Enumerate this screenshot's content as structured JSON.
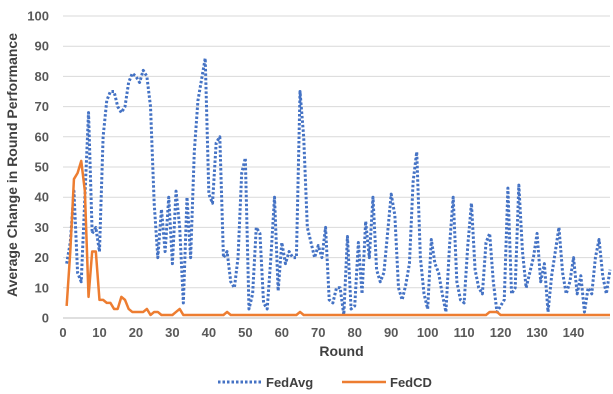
{
  "chart_data": {
    "type": "line",
    "title": "",
    "xlabel": "Round",
    "ylabel": "Average Change in Round Performance",
    "xlim": [
      0,
      150
    ],
    "ylim": [
      0,
      100
    ],
    "x_ticks": [
      0,
      10,
      20,
      30,
      40,
      50,
      60,
      70,
      80,
      90,
      100,
      110,
      120,
      130,
      140
    ],
    "y_ticks": [
      0,
      10,
      20,
      30,
      40,
      50,
      60,
      70,
      80,
      90,
      100
    ],
    "grid": "horizontal",
    "legend": "bottom",
    "series": [
      {
        "name": "FedAvg",
        "color": "#4472c4",
        "style": "dotted",
        "x": [
          1,
          2,
          3,
          4,
          5,
          6,
          7,
          8,
          9,
          10,
          11,
          12,
          13,
          14,
          15,
          16,
          17,
          18,
          19,
          20,
          21,
          22,
          23,
          24,
          25,
          26,
          27,
          28,
          29,
          30,
          31,
          32,
          33,
          34,
          35,
          36,
          37,
          38,
          39,
          40,
          41,
          42,
          43,
          44,
          45,
          46,
          47,
          48,
          49,
          50,
          51,
          52,
          53,
          54,
          55,
          56,
          57,
          58,
          59,
          60,
          61,
          62,
          63,
          64,
          65,
          66,
          67,
          68,
          69,
          70,
          71,
          72,
          73,
          74,
          75,
          76,
          77,
          78,
          79,
          80,
          81,
          82,
          83,
          84,
          85,
          86,
          87,
          88,
          89,
          90,
          91,
          92,
          93,
          94,
          95,
          96,
          97,
          98,
          99,
          100,
          101,
          102,
          103,
          104,
          105,
          106,
          107,
          108,
          109,
          110,
          111,
          112,
          113,
          114,
          115,
          116,
          117,
          118,
          119,
          120,
          121,
          122,
          123,
          124,
          125,
          126,
          127,
          128,
          129,
          130,
          131,
          132,
          133,
          134,
          135,
          136,
          137,
          138,
          139,
          140,
          141,
          142,
          143,
          144,
          145,
          146,
          147,
          148,
          149,
          150
        ],
        "values": [
          18,
          25,
          42,
          15,
          12,
          40,
          68,
          28,
          30,
          22,
          60,
          72,
          75,
          75,
          70,
          68,
          70,
          78,
          81,
          80,
          78,
          82,
          80,
          70,
          38,
          20,
          36,
          22,
          40,
          18,
          42,
          30,
          5,
          40,
          20,
          55,
          72,
          79,
          86,
          41,
          38,
          58,
          60,
          20,
          22,
          12,
          10,
          20,
          48,
          53,
          3,
          8,
          30,
          28,
          5,
          3,
          20,
          40,
          9,
          25,
          18,
          22,
          20,
          20,
          75,
          60,
          30,
          25,
          20,
          24,
          20,
          30,
          6,
          5,
          10,
          10,
          1,
          27,
          3,
          4,
          25,
          8,
          32,
          20,
          40,
          16,
          12,
          15,
          28,
          41,
          34,
          10,
          6,
          11,
          18,
          45,
          55,
          20,
          8,
          3,
          26,
          18,
          15,
          8,
          2,
          24,
          40,
          12,
          6,
          5,
          24,
          38,
          16,
          10,
          8,
          25,
          28,
          12,
          2,
          4,
          6,
          43,
          8,
          10,
          44,
          22,
          10,
          15,
          20,
          28,
          12,
          18,
          2,
          14,
          22,
          30,
          15,
          8,
          12,
          20,
          8,
          14,
          2,
          10,
          8,
          20,
          26,
          14,
          8,
          16
        ]
      },
      {
        "name": "FedCD",
        "color": "#ed7d31",
        "style": "solid",
        "x": [
          1,
          2,
          3,
          4,
          5,
          6,
          7,
          8,
          9,
          10,
          11,
          12,
          13,
          14,
          15,
          16,
          17,
          18,
          19,
          20,
          21,
          22,
          23,
          24,
          25,
          26,
          27,
          28,
          29,
          30,
          31,
          32,
          33,
          34,
          35,
          36,
          37,
          38,
          39,
          40,
          41,
          42,
          43,
          44,
          45,
          46,
          47,
          48,
          49,
          50,
          51,
          52,
          53,
          54,
          55,
          56,
          57,
          58,
          59,
          60,
          61,
          62,
          63,
          64,
          65,
          66,
          67,
          68,
          69,
          70,
          71,
          72,
          73,
          74,
          75,
          76,
          77,
          78,
          79,
          80,
          81,
          82,
          83,
          84,
          85,
          86,
          87,
          88,
          89,
          90,
          91,
          92,
          93,
          94,
          95,
          96,
          97,
          98,
          99,
          100,
          101,
          102,
          103,
          104,
          105,
          106,
          107,
          108,
          109,
          110,
          111,
          112,
          113,
          114,
          115,
          116,
          117,
          118,
          119,
          120,
          121,
          122,
          123,
          124,
          125,
          126,
          127,
          128,
          129,
          130,
          131,
          132,
          133,
          134,
          135,
          136,
          137,
          138,
          139,
          140,
          141,
          142,
          143,
          144,
          145,
          146,
          147,
          148,
          149,
          150
        ],
        "values": [
          4,
          22,
          46,
          48,
          52,
          42,
          7,
          22,
          22,
          6,
          6,
          5,
          5,
          3,
          3,
          7,
          6,
          3,
          2,
          2,
          2,
          2,
          3,
          1,
          2,
          2,
          1,
          1,
          1,
          1,
          2,
          3,
          1,
          1,
          1,
          1,
          1,
          1,
          1,
          1,
          1,
          1,
          1,
          1,
          2,
          1,
          1,
          1,
          1,
          1,
          1,
          1,
          1,
          1,
          1,
          1,
          1,
          1,
          1,
          1,
          1,
          1,
          1,
          1,
          2,
          1,
          1,
          1,
          1,
          1,
          1,
          1,
          1,
          1,
          1,
          1,
          1,
          1,
          1,
          1,
          1,
          1,
          1,
          1,
          1,
          1,
          1,
          1,
          1,
          1,
          1,
          1,
          1,
          1,
          1,
          1,
          1,
          1,
          1,
          1,
          1,
          1,
          1,
          1,
          1,
          1,
          1,
          1,
          1,
          1,
          1,
          1,
          1,
          1,
          1,
          1,
          2,
          2,
          2,
          1,
          1,
          1,
          1,
          1,
          1,
          1,
          1,
          1,
          1,
          1,
          1,
          1,
          1,
          1,
          1,
          1,
          1,
          1,
          1,
          1,
          1,
          1,
          1,
          1,
          1,
          1,
          1,
          1,
          1,
          1
        ]
      }
    ]
  }
}
